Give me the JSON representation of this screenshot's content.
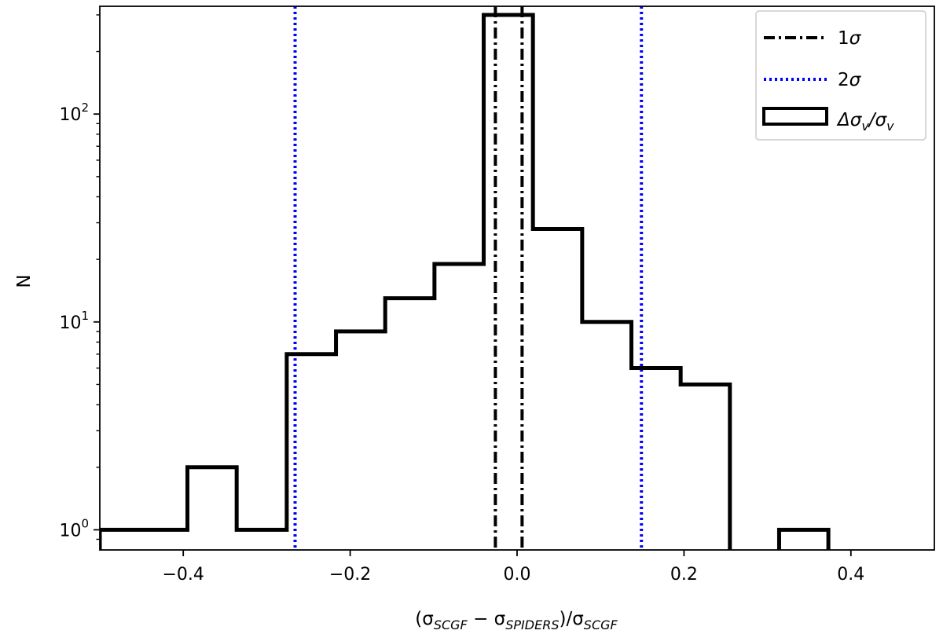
{
  "chart_data": {
    "type": "histogram",
    "yscale": "log",
    "xlim": [
      -0.5,
      0.5
    ],
    "ylim": [
      0.8,
      330
    ],
    "xticks": [
      -0.4,
      -0.2,
      0.0,
      0.2,
      0.4
    ],
    "xtick_labels": [
      "−0.4",
      "−0.2",
      "0.0",
      "0.2",
      "0.4"
    ],
    "yticks": [
      {
        "value": 1,
        "base": "10",
        "exp": "0"
      },
      {
        "value": 10,
        "base": "10",
        "exp": "1"
      },
      {
        "value": 100,
        "base": "10",
        "exp": "2"
      }
    ],
    "xlabel": {
      "open": "(σ",
      "sub1": "SCGF",
      "minus": " − σ",
      "sub2": "SPIDERS",
      "mid": ")/σ",
      "sub3": "SCGF"
    },
    "ylabel": "N",
    "bins": [
      {
        "x0": -0.5,
        "x1": -0.395,
        "count": 1
      },
      {
        "x0": -0.395,
        "x1": -0.336,
        "count": 2
      },
      {
        "x0": -0.336,
        "x1": -0.276,
        "count": 1
      },
      {
        "x0": -0.276,
        "x1": -0.217,
        "count": 7
      },
      {
        "x0": -0.217,
        "x1": -0.158,
        "count": 9
      },
      {
        "x0": -0.158,
        "x1": -0.099,
        "count": 13
      },
      {
        "x0": -0.099,
        "x1": -0.04,
        "count": 19
      },
      {
        "x0": -0.04,
        "x1": 0.019,
        "count": 300
      },
      {
        "x0": 0.019,
        "x1": 0.078,
        "count": 28
      },
      {
        "x0": 0.078,
        "x1": 0.137,
        "count": 10
      },
      {
        "x0": 0.137,
        "x1": 0.196,
        "count": 6
      },
      {
        "x0": 0.196,
        "x1": 0.255,
        "count": 5
      },
      {
        "x0": 0.255,
        "x1": 0.314,
        "count": 0
      },
      {
        "x0": 0.314,
        "x1": 0.373,
        "count": 1
      }
    ],
    "one_sigma_lines": [
      -0.026,
      0.006
    ],
    "two_sigma_lines": [
      -0.266,
      0.149
    ],
    "colors": {
      "hist": "#000000",
      "one_sigma": "#000000",
      "two_sigma": "#0000ff"
    },
    "legend": {
      "placement": "top-right",
      "items": [
        {
          "label_base": "1",
          "label_sym": "σ",
          "style": "dashdot"
        },
        {
          "label_base": "2",
          "label_sym": "σ",
          "style": "dotted"
        },
        {
          "label_base": "Δσ",
          "label_sub": "v",
          "label_mid": "/σ",
          "label_sub2": "v",
          "style": "box"
        }
      ]
    }
  }
}
